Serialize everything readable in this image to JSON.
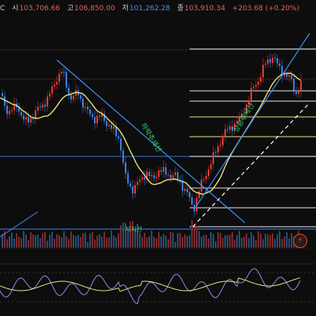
{
  "header": {
    "prefix": "C",
    "open_label": "시",
    "open_value": "103,706.66",
    "high_label": "고",
    "high_value": "106,850.00",
    "low_label": "저",
    "low_value": "101,262.28",
    "close_label": "종",
    "close_value": "103,910.34",
    "change": "+203.68 (+0.20%)"
  },
  "annotations": {
    "downtrend_label": "하락추세선",
    "uptrend_label": "상승추세선",
    "bottom_label": "지지선"
  },
  "colors": {
    "up": "#e23a33",
    "down": "#3e7ee0",
    "ma": "#e8e07a",
    "fib": "#e8e07a",
    "white_line": "#e8e8e8",
    "trend": "#3f8cf0",
    "rsi": "#8c8ce8"
  },
  "icons": {
    "alert": "lightning-bolt-icon"
  }
}
